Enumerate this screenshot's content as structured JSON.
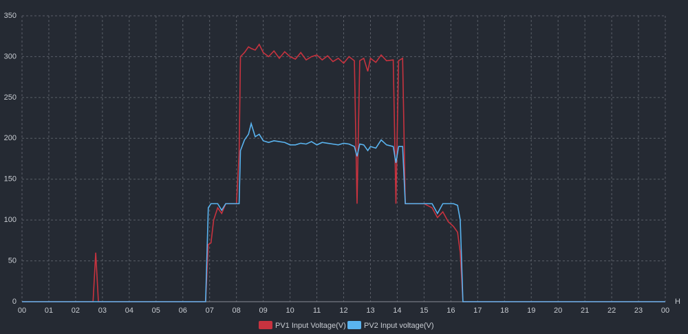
{
  "chart_data": {
    "type": "line",
    "x_label": "H",
    "x": [
      0,
      2.65,
      2.75,
      2.85,
      6.85,
      6.95,
      7.05,
      7.15,
      7.3,
      7.45,
      7.6,
      7.8,
      8.0,
      8.1,
      8.15,
      8.3,
      8.45,
      8.55,
      8.7,
      8.85,
      9.0,
      9.2,
      9.4,
      9.6,
      9.8,
      10.0,
      10.2,
      10.4,
      10.6,
      10.8,
      11.0,
      11.2,
      11.4,
      11.6,
      11.8,
      12.0,
      12.2,
      12.4,
      12.5,
      12.6,
      12.75,
      12.9,
      13.0,
      13.2,
      13.4,
      13.6,
      13.85,
      13.95,
      14.05,
      14.2,
      14.3,
      14.6,
      15.0,
      15.3,
      15.5,
      15.7,
      15.9,
      16.1,
      16.25,
      16.35,
      16.45,
      24
    ],
    "series": [
      {
        "name": "PV1 Input Voltage(V)",
        "color": "#c8333f",
        "values": [
          0,
          0,
          60,
          0,
          0,
          70,
          72,
          100,
          115,
          108,
          120,
          120,
          120,
          180,
          300,
          305,
          312,
          310,
          308,
          315,
          305,
          300,
          307,
          298,
          306,
          300,
          297,
          305,
          296,
          300,
          302,
          296,
          301,
          294,
          298,
          292,
          300,
          295,
          120,
          295,
          298,
          282,
          298,
          293,
          302,
          295,
          296,
          120,
          295,
          298,
          120,
          120,
          120,
          115,
          103,
          110,
          98,
          92,
          85,
          60,
          0,
          0
        ]
      },
      {
        "name": "PV2 Input voltage(V)",
        "color": "#5ab4f0",
        "values": [
          0,
          0,
          0,
          0,
          0,
          115,
          120,
          120,
          120,
          112,
          120,
          120,
          120,
          120,
          185,
          198,
          205,
          218,
          202,
          205,
          197,
          195,
          197,
          196,
          195,
          192,
          192,
          194,
          193,
          196,
          192,
          195,
          194,
          193,
          192,
          194,
          193,
          190,
          178,
          193,
          192,
          185,
          190,
          188,
          198,
          192,
          190,
          170,
          190,
          190,
          120,
          120,
          120,
          120,
          108,
          120,
          120,
          120,
          118,
          100,
          0,
          0
        ]
      }
    ],
    "xlim": [
      0,
      24
    ],
    "xticks": [
      {
        "value": 0,
        "label": "00"
      },
      {
        "value": 1,
        "label": "01"
      },
      {
        "value": 2,
        "label": "02"
      },
      {
        "value": 3,
        "label": "03"
      },
      {
        "value": 4,
        "label": "04"
      },
      {
        "value": 5,
        "label": "05"
      },
      {
        "value": 6,
        "label": "06"
      },
      {
        "value": 7,
        "label": "07"
      },
      {
        "value": 8,
        "label": "08"
      },
      {
        "value": 9,
        "label": "09"
      },
      10,
      11,
      12,
      13,
      14,
      15,
      16,
      17,
      18,
      19,
      20,
      21,
      22,
      23,
      {
        "value": 24,
        "label": "00"
      }
    ],
    "ylim": [
      0,
      350
    ],
    "yticks": [
      0,
      50,
      100,
      150,
      200,
      250,
      300,
      350
    ],
    "grid": true
  }
}
